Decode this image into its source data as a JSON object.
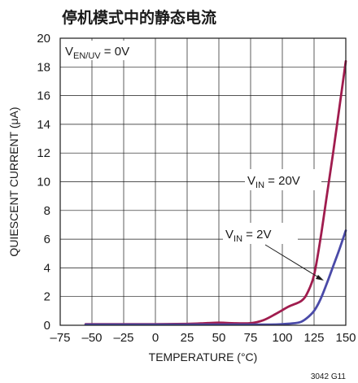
{
  "chart_data": {
    "type": "line",
    "title": "停机模式中的静态电流",
    "xlabel": "TEMPERATURE (°C)",
    "ylabel": "QUIESCENT CURRENT (μA)",
    "xlim": [
      -75,
      150
    ],
    "ylim": [
      0,
      20
    ],
    "xticks": [
      -75,
      -50,
      -25,
      0,
      25,
      50,
      75,
      100,
      125,
      150
    ],
    "yticks": [
      0,
      2,
      4,
      6,
      8,
      10,
      12,
      14,
      16,
      18,
      20
    ],
    "grid": true,
    "condition": {
      "main": "V",
      "sub": "EN/UV",
      "rest": " = 0V"
    },
    "series": [
      {
        "name": "VIN = 20V",
        "label": {
          "main": "V",
          "sub": "IN",
          "rest": " = 20V"
        },
        "color": "#a01c4e",
        "x": [
          -55,
          -25,
          0,
          25,
          40,
          50,
          60,
          75,
          85,
          95,
          105,
          115,
          120,
          125,
          130,
          135,
          140,
          145,
          150
        ],
        "y": [
          0.08,
          0.08,
          0.08,
          0.1,
          0.15,
          0.18,
          0.15,
          0.15,
          0.35,
          0.8,
          1.3,
          1.7,
          2.3,
          3.5,
          6.0,
          9.0,
          12.0,
          15.2,
          18.4
        ]
      },
      {
        "name": "VIN = 2V",
        "label": {
          "main": "V",
          "sub": "IN",
          "rest": " = 2V"
        },
        "color": "#4a4aa8",
        "x": [
          -55,
          -25,
          0,
          25,
          50,
          75,
          90,
          100,
          110,
          115,
          120,
          125,
          130,
          135,
          140,
          145,
          150
        ],
        "y": [
          0.05,
          0.05,
          0.05,
          0.05,
          0.05,
          0.05,
          0.05,
          0.08,
          0.15,
          0.25,
          0.55,
          1.0,
          1.8,
          2.9,
          4.1,
          5.3,
          6.6
        ]
      }
    ],
    "figure_id": "3042 G11"
  }
}
